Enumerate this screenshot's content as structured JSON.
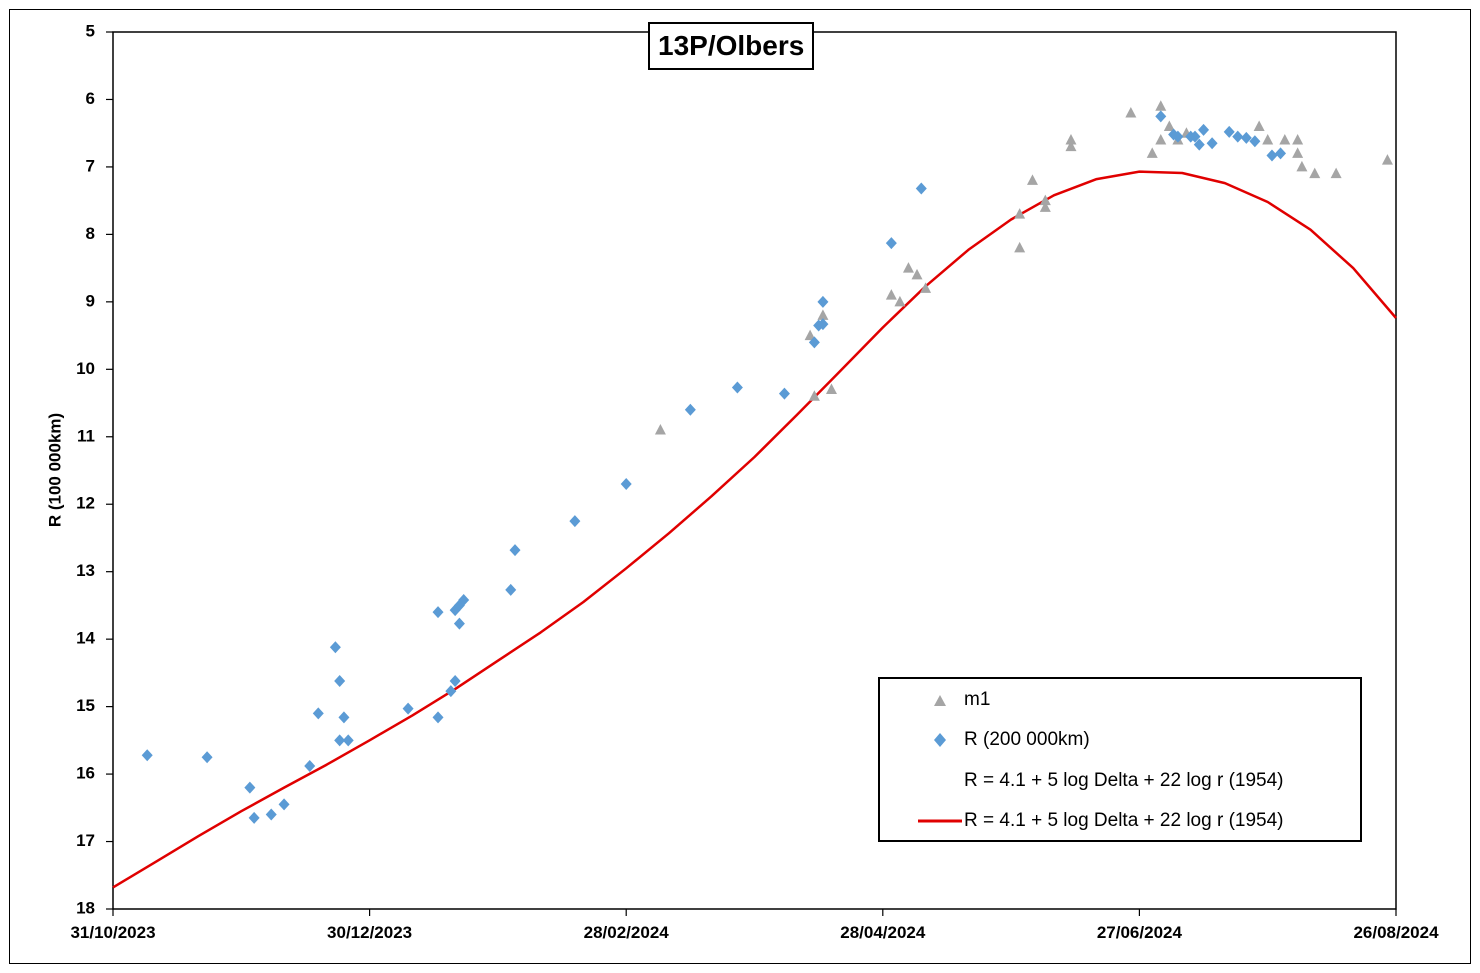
{
  "chart_data": {
    "type": "scatter",
    "title": "13P/Olbers",
    "xlabel": "",
    "ylabel": "R (100 000km)",
    "x_ticks": [
      "31/10/2023",
      "30/12/2023",
      "28/02/2024",
      "28/04/2024",
      "27/06/2024",
      "26/08/2024"
    ],
    "xlim": [
      "2023-10-31",
      "2024-08-26"
    ],
    "ylim": [
      5,
      18
    ],
    "y_inverted": true,
    "y_ticks": [
      5,
      6,
      7,
      8,
      9,
      10,
      11,
      12,
      13,
      14,
      15,
      16,
      17,
      18
    ],
    "grid": false,
    "legend_position": "bottom-right",
    "legend": [
      {
        "label": "m1",
        "marker": "triangle",
        "color": "#a5a5a5"
      },
      {
        "label": "R (200 000km)",
        "marker": "diamond",
        "color": "#5b9bd5"
      },
      {
        "label": "R = 4.1 + 5 log Delta + 22 log r (1954)",
        "marker": "none",
        "color": "#ffffff"
      },
      {
        "label": "R = 4.1 + 5 log Delta + 22 log r (1954)",
        "marker": "line",
        "color": "#e00000"
      }
    ],
    "series": [
      {
        "name": "m1",
        "type": "scatter",
        "marker": "triangle",
        "color": "#a5a5a5",
        "points": [
          [
            "2024-03-07",
            10.9
          ],
          [
            "2024-04-11",
            9.5
          ],
          [
            "2024-04-12",
            10.4
          ],
          [
            "2024-04-14",
            9.2
          ],
          [
            "2024-04-16",
            10.3
          ],
          [
            "2024-04-30",
            8.9
          ],
          [
            "2024-05-02",
            9.0
          ],
          [
            "2024-05-04",
            8.5
          ],
          [
            "2024-05-06",
            8.6
          ],
          [
            "2024-05-08",
            8.8
          ],
          [
            "2024-05-30",
            8.2
          ],
          [
            "2024-05-30",
            7.7
          ],
          [
            "2024-06-02",
            7.2
          ],
          [
            "2024-06-05",
            7.5
          ],
          [
            "2024-06-05",
            7.6
          ],
          [
            "2024-06-11",
            6.6
          ],
          [
            "2024-06-11",
            6.7
          ],
          [
            "2024-06-25",
            6.2
          ],
          [
            "2024-06-30",
            6.8
          ],
          [
            "2024-07-02",
            6.1
          ],
          [
            "2024-07-02",
            6.6
          ],
          [
            "2024-07-04",
            6.4
          ],
          [
            "2024-07-06",
            6.6
          ],
          [
            "2024-07-08",
            6.5
          ],
          [
            "2024-07-25",
            6.4
          ],
          [
            "2024-07-27",
            6.6
          ],
          [
            "2024-07-31",
            6.6
          ],
          [
            "2024-08-03",
            6.6
          ],
          [
            "2024-08-03",
            6.8
          ],
          [
            "2024-08-04",
            7.0
          ],
          [
            "2024-08-07",
            7.1
          ],
          [
            "2024-08-12",
            7.1
          ],
          [
            "2024-08-24",
            6.9
          ]
        ]
      },
      {
        "name": "R (200 000km)",
        "type": "scatter",
        "marker": "diamond",
        "color": "#5b9bd5",
        "points": [
          [
            "2023-11-08",
            15.72
          ],
          [
            "2023-11-22",
            15.75
          ],
          [
            "2023-12-02",
            16.2
          ],
          [
            "2023-12-03",
            16.65
          ],
          [
            "2023-12-07",
            16.6
          ],
          [
            "2023-12-10",
            16.45
          ],
          [
            "2023-12-16",
            15.88
          ],
          [
            "2023-12-18",
            15.1
          ],
          [
            "2023-12-22",
            14.12
          ],
          [
            "2023-12-23",
            14.62
          ],
          [
            "2023-12-23",
            15.5
          ],
          [
            "2023-12-24",
            15.16
          ],
          [
            "2023-12-25",
            15.5
          ],
          [
            "2024-01-08",
            15.03
          ],
          [
            "2024-01-15",
            13.6
          ],
          [
            "2024-01-15",
            15.16
          ],
          [
            "2024-01-18",
            14.77
          ],
          [
            "2024-01-19",
            13.57
          ],
          [
            "2024-01-19",
            14.62
          ],
          [
            "2024-01-20",
            13.5
          ],
          [
            "2024-01-20",
            13.77
          ],
          [
            "2024-01-21",
            13.42
          ],
          [
            "2024-02-01",
            13.27
          ],
          [
            "2024-02-02",
            12.68
          ],
          [
            "2024-02-16",
            12.25
          ],
          [
            "2024-02-28",
            11.7
          ],
          [
            "2024-03-14",
            10.6
          ],
          [
            "2024-03-25",
            10.27
          ],
          [
            "2024-04-05",
            10.36
          ],
          [
            "2024-04-12",
            9.6
          ],
          [
            "2024-04-13",
            9.35
          ],
          [
            "2024-04-14",
            9.33
          ],
          [
            "2024-04-14",
            9.0
          ],
          [
            "2024-04-30",
            8.13
          ],
          [
            "2024-05-07",
            7.32
          ],
          [
            "2024-07-02",
            6.25
          ],
          [
            "2024-07-05",
            6.52
          ],
          [
            "2024-07-06",
            6.55
          ],
          [
            "2024-07-09",
            6.55
          ],
          [
            "2024-07-10",
            6.55
          ],
          [
            "2024-07-11",
            6.67
          ],
          [
            "2024-07-12",
            6.45
          ],
          [
            "2024-07-14",
            6.65
          ],
          [
            "2024-07-18",
            6.48
          ],
          [
            "2024-07-20",
            6.55
          ],
          [
            "2024-07-22",
            6.57
          ],
          [
            "2024-07-24",
            6.62
          ],
          [
            "2024-07-28",
            6.83
          ],
          [
            "2024-07-30",
            6.8
          ]
        ]
      },
      {
        "name": "R = 4.1 + 5 log Delta + 22 log r (1954)",
        "type": "line",
        "color": "#e00000",
        "points": [
          [
            "2023-10-31",
            17.68
          ],
          [
            "2023-11-10",
            17.3
          ],
          [
            "2023-11-20",
            16.92
          ],
          [
            "2023-11-30",
            16.55
          ],
          [
            "2023-12-10",
            16.2
          ],
          [
            "2023-12-20",
            15.86
          ],
          [
            "2023-12-30",
            15.5
          ],
          [
            "2024-01-09",
            15.13
          ],
          [
            "2024-01-19",
            14.74
          ],
          [
            "2024-01-29",
            14.32
          ],
          [
            "2024-02-08",
            13.9
          ],
          [
            "2024-02-18",
            13.45
          ],
          [
            "2024-02-28",
            12.95
          ],
          [
            "2024-03-09",
            12.43
          ],
          [
            "2024-03-19",
            11.88
          ],
          [
            "2024-03-29",
            11.3
          ],
          [
            "2024-04-08",
            10.67
          ],
          [
            "2024-04-18",
            10.03
          ],
          [
            "2024-04-28",
            9.38
          ],
          [
            "2024-05-08",
            8.77
          ],
          [
            "2024-05-18",
            8.23
          ],
          [
            "2024-05-28",
            7.78
          ],
          [
            "2024-06-07",
            7.42
          ],
          [
            "2024-06-17",
            7.18
          ],
          [
            "2024-06-27",
            7.07
          ],
          [
            "2024-07-07",
            7.09
          ],
          [
            "2024-07-17",
            7.24
          ],
          [
            "2024-07-27",
            7.52
          ],
          [
            "2024-08-06",
            7.93
          ],
          [
            "2024-08-16",
            8.5
          ],
          [
            "2024-08-26",
            9.24
          ]
        ]
      }
    ]
  }
}
